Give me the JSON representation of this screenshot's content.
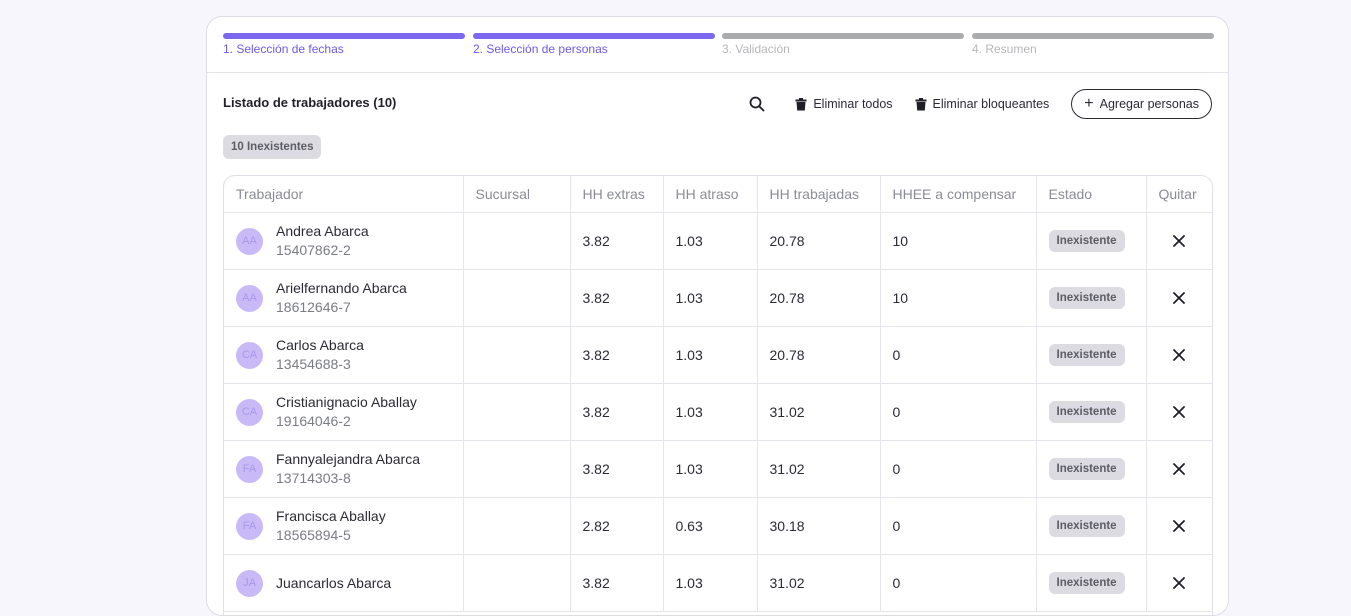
{
  "stepper": [
    {
      "label": "1. Selección de fechas",
      "active": true
    },
    {
      "label": "2. Selección de personas",
      "active": true
    },
    {
      "label": "3. Validación",
      "active": false
    },
    {
      "label": "4. Resumen",
      "active": false
    }
  ],
  "list": {
    "title": "Listado de trabajadores (10)"
  },
  "toolbar": {
    "search_icon": "search-icon",
    "delete_all_label": "Eliminar todos",
    "delete_blocking_label": "Eliminar bloqueantes",
    "add_label": "Agregar personas"
  },
  "filter_chip": "10 Inexistentes",
  "table": {
    "columns": [
      "Trabajador",
      "Sucursal",
      "HH extras",
      "HH atraso",
      "HH trabajadas",
      "HHEE a compensar",
      "Estado",
      "Quitar"
    ],
    "rows": [
      {
        "initials": "AA",
        "name": "Andrea Abarca",
        "rut": "15407862-2",
        "sucursal": "",
        "hh_extras": "3.82",
        "hh_atraso": "1.03",
        "hh_trabajadas": "20.78",
        "hhee_compensar": "10",
        "estado": "Inexistente"
      },
      {
        "initials": "AA",
        "name": "Arielfernando Abarca",
        "rut": "18612646-7",
        "sucursal": "",
        "hh_extras": "3.82",
        "hh_atraso": "1.03",
        "hh_trabajadas": "20.78",
        "hhee_compensar": "10",
        "estado": "Inexistente"
      },
      {
        "initials": "CA",
        "name": "Carlos Abarca",
        "rut": "13454688-3",
        "sucursal": "",
        "hh_extras": "3.82",
        "hh_atraso": "1.03",
        "hh_trabajadas": "20.78",
        "hhee_compensar": "0",
        "estado": "Inexistente"
      },
      {
        "initials": "CA",
        "name": "Cristianignacio Aballay",
        "rut": "19164046-2",
        "sucursal": "",
        "hh_extras": "3.82",
        "hh_atraso": "1.03",
        "hh_trabajadas": "31.02",
        "hhee_compensar": "0",
        "estado": "Inexistente"
      },
      {
        "initials": "FA",
        "name": "Fannyalejandra Abarca",
        "rut": "13714303-8",
        "sucursal": "",
        "hh_extras": "3.82",
        "hh_atraso": "1.03",
        "hh_trabajadas": "31.02",
        "hhee_compensar": "0",
        "estado": "Inexistente"
      },
      {
        "initials": "FA",
        "name": "Francisca Aballay",
        "rut": "18565894-5",
        "sucursal": "",
        "hh_extras": "2.82",
        "hh_atraso": "0.63",
        "hh_trabajadas": "30.18",
        "hhee_compensar": "0",
        "estado": "Inexistente"
      },
      {
        "initials": "JA",
        "name": "Juancarlos Abarca",
        "rut": "",
        "sucursal": "",
        "hh_extras": "3.82",
        "hh_atraso": "1.03",
        "hh_trabajadas": "31.02",
        "hhee_compensar": "0",
        "estado": "Inexistente"
      }
    ]
  },
  "colors": {
    "accent": "#7b68ee",
    "inactive_step": "#a9abad",
    "avatar": "#c9baf7",
    "badge_bg": "#dcdbe2",
    "page_bg": "#f7f6fd"
  }
}
